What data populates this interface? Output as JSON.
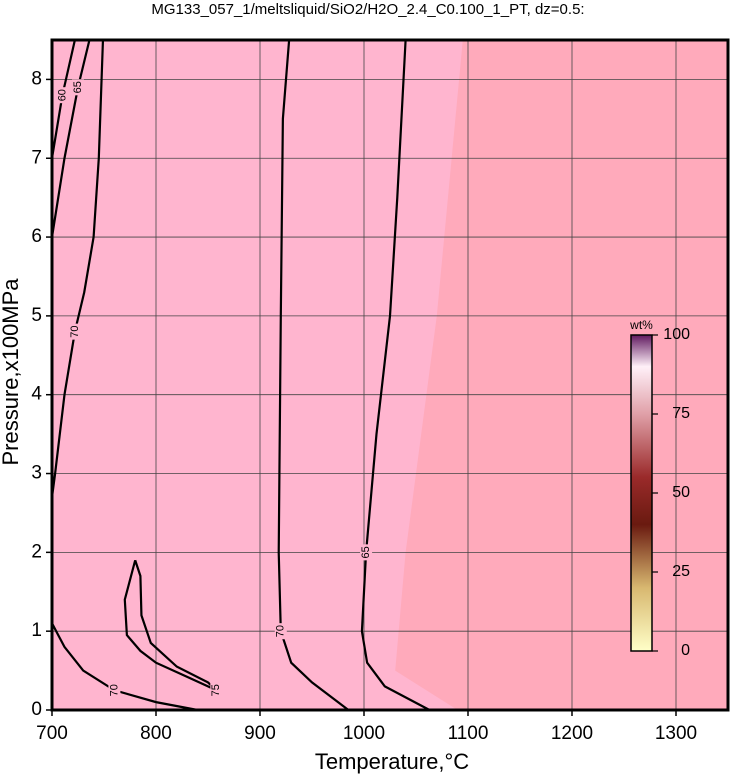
{
  "chart_data": {
    "type": "contour",
    "title": "MG133_057_1/meltsliquid/SiO2/H2O_2.4_C0.100_1_PT, dz=0.5:",
    "x_label": "Temperature,°C",
    "y_label": "Pressure,x100MPa",
    "xlim": [
      700,
      1350
    ],
    "ylim": [
      0,
      8.5
    ],
    "xticks": [
      700,
      800,
      900,
      1000,
      1100,
      1200,
      1300
    ],
    "yticks": [
      0,
      1,
      2,
      3,
      4,
      5,
      6,
      7,
      8
    ],
    "grid": true,
    "background": "#ffaabb",
    "region_color": "#ffb5cf",
    "contours": [
      {
        "level": 60,
        "T": [
          700,
          710,
          722
        ],
        "P": [
          7.0,
          7.8,
          8.5
        ]
      },
      {
        "level": 65,
        "T": [
          700,
          712,
          725,
          736
        ],
        "P": [
          6.0,
          7.0,
          7.9,
          8.5
        ]
      },
      {
        "level": 70,
        "T": [
          749,
          745,
          740,
          731,
          722,
          712,
          703,
          700
        ],
        "P": [
          8.5,
          7.0,
          6.0,
          5.3,
          4.8,
          4.0,
          3.0,
          2.7
        ]
      },
      {
        "level": 70,
        "T": [
          700,
          712,
          730,
          760,
          800,
          840
        ],
        "P": [
          1.1,
          0.8,
          0.5,
          0.25,
          0.1,
          0.0
        ]
      },
      {
        "level": 70,
        "T": [
          928,
          922,
          920,
          918,
          920,
          930,
          950,
          985
        ],
        "P": [
          8.5,
          7.5,
          5.0,
          2.0,
          1.0,
          0.6,
          0.35,
          0.0
        ]
      },
      {
        "level": 65,
        "T": [
          1040,
          1032,
          1025,
          1012,
          1002,
          998,
          1003,
          1020,
          1063
        ],
        "P": [
          8.5,
          6.5,
          5.0,
          3.5,
          2.0,
          1.0,
          0.6,
          0.3,
          0.0
        ]
      },
      {
        "level": 75,
        "T": [
          780,
          770,
          772,
          785,
          800,
          830,
          850,
          858,
          850,
          820,
          795,
          786,
          785,
          780
        ],
        "P": [
          1.9,
          1.4,
          0.95,
          0.75,
          0.6,
          0.42,
          0.3,
          0.25,
          0.35,
          0.55,
          0.85,
          1.2,
          1.7,
          1.9
        ]
      }
    ],
    "colorbar": {
      "label": "wt%",
      "lim": [
        0,
        100
      ],
      "ticks": [
        0,
        25,
        50,
        75,
        100
      ]
    }
  }
}
